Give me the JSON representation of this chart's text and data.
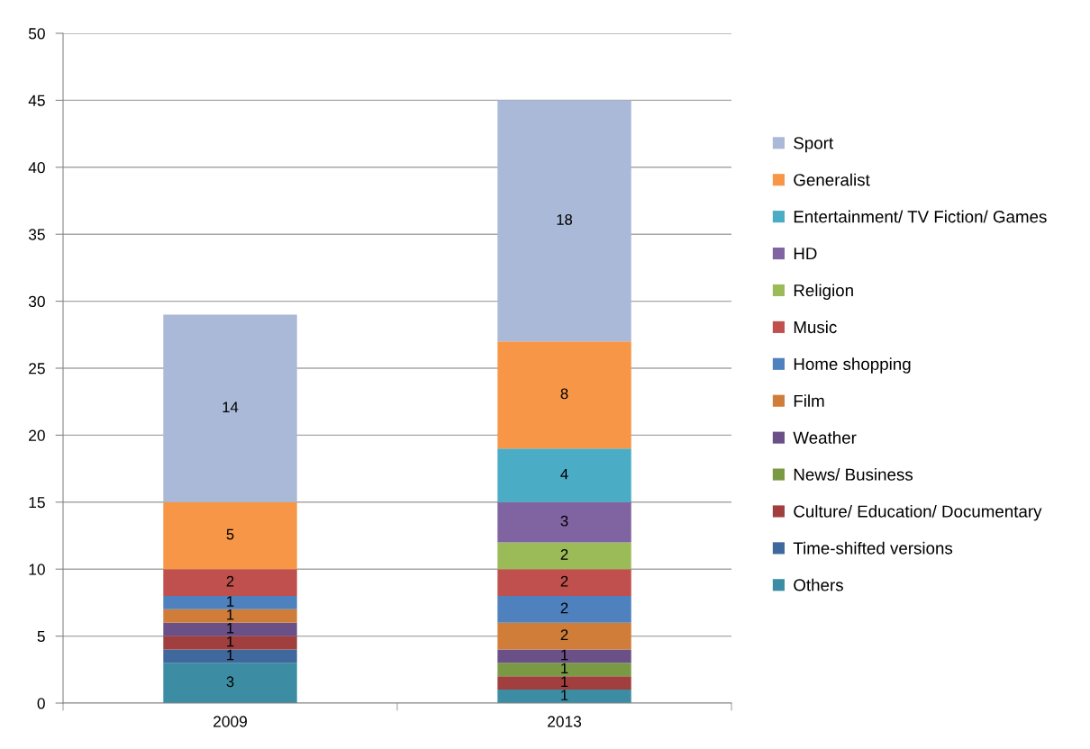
{
  "chart_data": {
    "type": "bar",
    "stacked": true,
    "categories": [
      "2009",
      "2013"
    ],
    "series": [
      {
        "name": "Others",
        "color": "#3c8da3",
        "values": [
          3,
          1
        ]
      },
      {
        "name": "Time-shifted versions",
        "color": "#3f689c",
        "values": [
          1,
          null
        ]
      },
      {
        "name": "Culture/ Education/ Documentary",
        "color": "#a03f3e",
        "values": [
          1,
          1
        ]
      },
      {
        "name": "News/ Business",
        "color": "#7a9944",
        "values": [
          null,
          1
        ]
      },
      {
        "name": "Weather",
        "color": "#6a5087",
        "values": [
          1,
          1
        ]
      },
      {
        "name": "Film",
        "color": "#d07d3a",
        "values": [
          1,
          2
        ]
      },
      {
        "name": "Home shopping",
        "color": "#4e81bd",
        "values": [
          1,
          2
        ]
      },
      {
        "name": "Music",
        "color": "#c0504d",
        "values": [
          2,
          2
        ]
      },
      {
        "name": "Religion",
        "color": "#9bbb59",
        "values": [
          null,
          2
        ]
      },
      {
        "name": "HD",
        "color": "#8064a2",
        "values": [
          null,
          3
        ]
      },
      {
        "name": "Entertainment/ TV Fiction/ Games",
        "color": "#4bacc6",
        "values": [
          null,
          4
        ]
      },
      {
        "name": "Generalist",
        "color": "#f79646",
        "values": [
          5,
          8
        ]
      },
      {
        "name": "Sport",
        "color": "#aab9d7",
        "values": [
          14,
          18
        ]
      }
    ],
    "ylim": [
      0,
      50
    ],
    "yticks": [
      0,
      5,
      10,
      15,
      20,
      25,
      30,
      35,
      40,
      45,
      50
    ],
    "grid": "y",
    "legend": "right",
    "data_labels": true
  }
}
